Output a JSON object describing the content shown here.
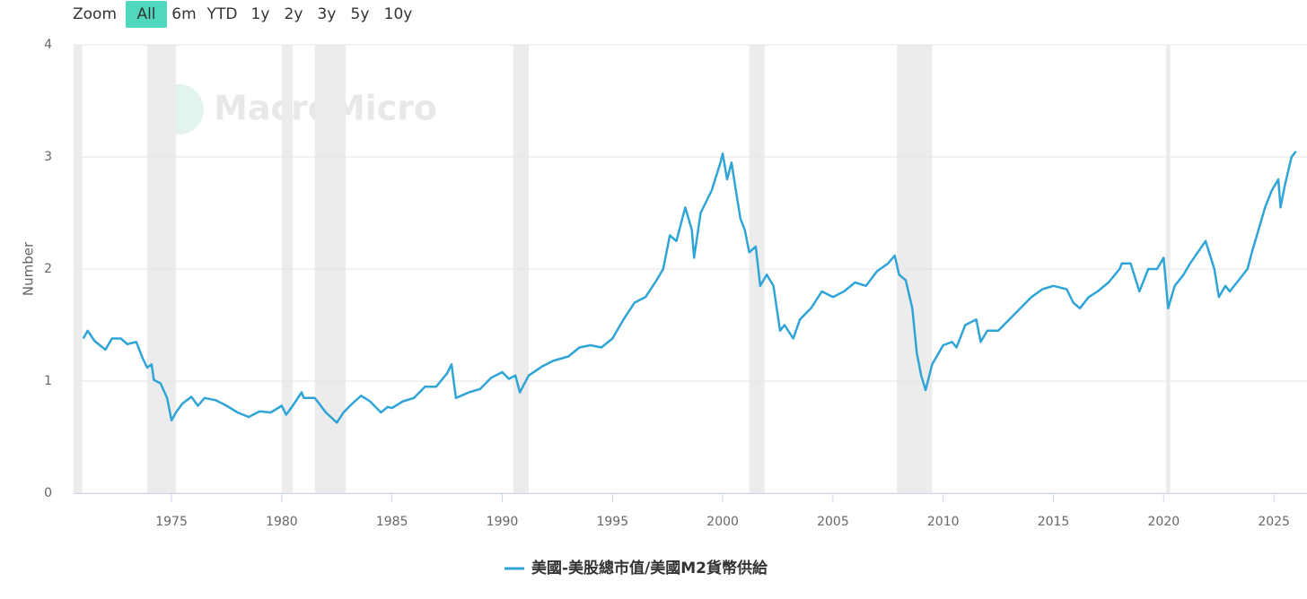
{
  "range_selector": {
    "label": "Zoom",
    "buttons": [
      "All",
      "6m",
      "YTD",
      "1y",
      "2y",
      "3y",
      "5y",
      "10y"
    ],
    "selected": 0
  },
  "watermark": "MacroMicro",
  "chart_data": {
    "type": "line",
    "y_label": "Number",
    "xlim": [
      1970.56,
      2026.5
    ],
    "xticks": [
      1975,
      1980,
      1985,
      1990,
      1995,
      2000,
      2005,
      2010,
      2015,
      2020,
      2025
    ],
    "ylim": [
      0,
      4
    ],
    "yticks": [
      0,
      1,
      2,
      3,
      4
    ],
    "grid": true,
    "recessions": [
      [
        1970.56,
        1970.95
      ],
      [
        1973.9,
        1975.2
      ],
      [
        1980.0,
        1980.5
      ],
      [
        1981.5,
        1982.9
      ],
      [
        1990.5,
        1991.2
      ],
      [
        2001.2,
        2001.9
      ],
      [
        2007.9,
        2009.5
      ],
      [
        2020.1,
        2020.3
      ]
    ],
    "recession_color": "#ececec",
    "x": [
      1971.0,
      1971.2,
      1971.5,
      1972.0,
      1972.3,
      1972.7,
      1973.0,
      1973.4,
      1973.7,
      1973.9,
      1974.1,
      1974.2,
      1974.5,
      1974.8,
      1975.0,
      1975.2,
      1975.5,
      1975.9,
      1976.2,
      1976.5,
      1977.0,
      1977.5,
      1978.0,
      1978.5,
      1979.0,
      1979.5,
      1980.0,
      1980.2,
      1980.5,
      1980.9,
      1981.0,
      1981.5,
      1982.0,
      1982.5,
      1982.8,
      1983.2,
      1983.6,
      1984.0,
      1984.5,
      1984.8,
      1985.0,
      1985.5,
      1986.0,
      1986.5,
      1987.0,
      1987.5,
      1987.7,
      1987.9,
      1988.5,
      1989.0,
      1989.5,
      1990.0,
      1990.3,
      1990.6,
      1990.8,
      1991.2,
      1991.8,
      1992.3,
      1993.0,
      1993.5,
      1994.0,
      1994.5,
      1995.0,
      1995.5,
      1996.0,
      1996.5,
      1997.0,
      1997.3,
      1997.6,
      1997.9,
      1998.3,
      1998.6,
      1998.7,
      1999.0,
      1999.5,
      1999.9,
      2000.0,
      2000.2,
      2000.4,
      2000.6,
      2000.8,
      2001.0,
      2001.2,
      2001.5,
      2001.7,
      2002.0,
      2002.3,
      2002.6,
      2002.8,
      2003.2,
      2003.5,
      2004.0,
      2004.5,
      2005.0,
      2005.5,
      2006.0,
      2006.5,
      2007.0,
      2007.5,
      2007.8,
      2008.0,
      2008.3,
      2008.6,
      2008.8,
      2009.0,
      2009.2,
      2009.5,
      2010.0,
      2010.4,
      2010.6,
      2011.0,
      2011.5,
      2011.7,
      2012.0,
      2012.5,
      2013.0,
      2013.5,
      2014.0,
      2014.5,
      2015.0,
      2015.6,
      2015.9,
      2016.2,
      2016.6,
      2017.0,
      2017.5,
      2018.0,
      2018.1,
      2018.5,
      2018.9,
      2019.3,
      2019.7,
      2020.0,
      2020.2,
      2020.5,
      2020.9,
      2021.2,
      2021.9,
      2022.3,
      2022.5,
      2022.8,
      2023.0,
      2023.4,
      2023.8,
      2024.0,
      2024.3,
      2024.6,
      2024.9,
      2025.2,
      2025.3,
      2025.5,
      2025.8,
      2026.0
    ],
    "series": [
      {
        "name": "美國-美股總市值/美國M2貨幣供給",
        "color": "#2fa4d6",
        "values": [
          1.38,
          1.45,
          1.36,
          1.28,
          1.38,
          1.38,
          1.33,
          1.35,
          1.2,
          1.12,
          1.15,
          1.01,
          0.98,
          0.85,
          0.65,
          0.72,
          0.8,
          0.86,
          0.78,
          0.85,
          0.83,
          0.78,
          0.72,
          0.68,
          0.73,
          0.72,
          0.78,
          0.7,
          0.78,
          0.9,
          0.85,
          0.85,
          0.72,
          0.63,
          0.72,
          0.8,
          0.87,
          0.82,
          0.72,
          0.77,
          0.76,
          0.82,
          0.85,
          0.95,
          0.95,
          1.07,
          1.15,
          0.85,
          0.9,
          0.93,
          1.03,
          1.08,
          1.02,
          1.05,
          0.9,
          1.05,
          1.13,
          1.18,
          1.22,
          1.3,
          1.32,
          1.3,
          1.38,
          1.55,
          1.7,
          1.75,
          1.9,
          2.0,
          2.3,
          2.25,
          2.55,
          2.35,
          2.1,
          2.5,
          2.7,
          2.95,
          3.03,
          2.8,
          2.95,
          2.7,
          2.45,
          2.35,
          2.15,
          2.2,
          1.85,
          1.95,
          1.85,
          1.45,
          1.5,
          1.38,
          1.55,
          1.65,
          1.8,
          1.75,
          1.8,
          1.88,
          1.85,
          1.98,
          2.05,
          2.12,
          1.95,
          1.9,
          1.65,
          1.25,
          1.05,
          0.92,
          1.15,
          1.32,
          1.35,
          1.3,
          1.5,
          1.55,
          1.35,
          1.45,
          1.45,
          1.55,
          1.65,
          1.75,
          1.82,
          1.85,
          1.82,
          1.7,
          1.65,
          1.75,
          1.8,
          1.88,
          2.0,
          2.05,
          2.05,
          1.8,
          2.0,
          2.0,
          2.1,
          1.65,
          1.85,
          1.95,
          2.05,
          2.25,
          2.0,
          1.75,
          1.85,
          1.8,
          1.9,
          2.0,
          2.15,
          2.35,
          2.55,
          2.7,
          2.8,
          2.55,
          2.75,
          3.0,
          3.05
        ]
      }
    ]
  }
}
